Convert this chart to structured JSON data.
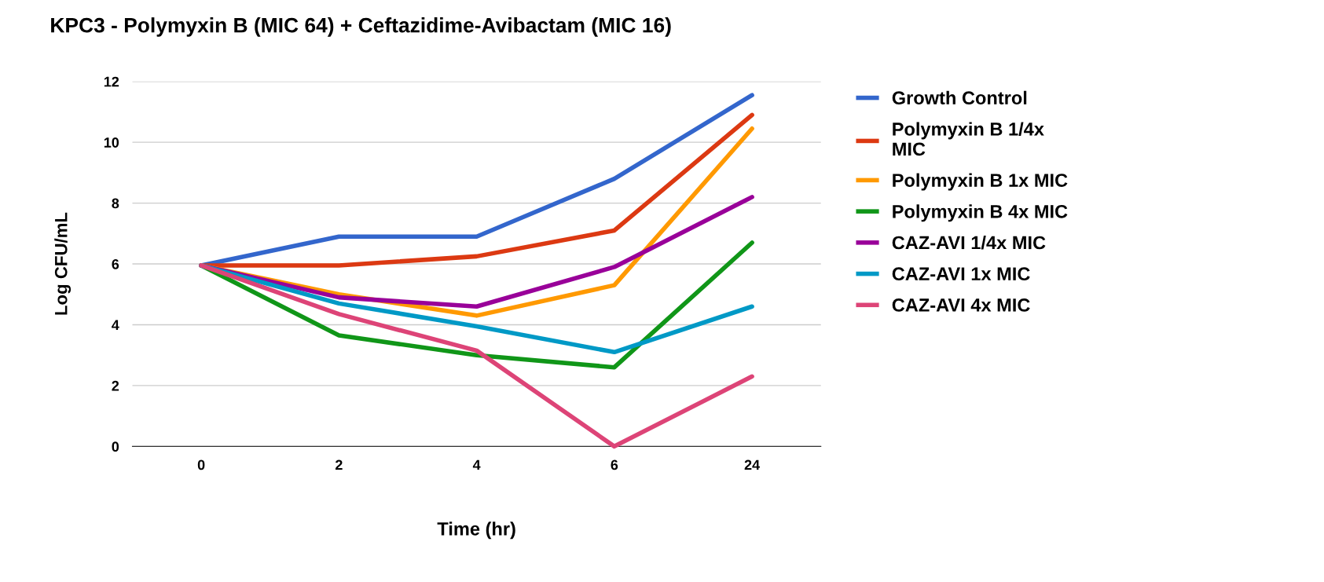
{
  "chart_data": {
    "type": "line",
    "title": "KPC3 - Polymyxin B (MIC 64) + Ceftazidime-Avibactam (MIC 16)",
    "xlabel": "Time (hr)",
    "ylabel": "Log CFU/mL",
    "categories": [
      "0",
      "2",
      "4",
      "6",
      "24"
    ],
    "series": [
      {
        "name": "Growth Control",
        "color": "#3366cc",
        "values": [
          5.95,
          6.9,
          6.9,
          8.8,
          11.55
        ]
      },
      {
        "name": "Polymyxin B 1/4x MIC",
        "color": "#dc3912",
        "values": [
          5.95,
          5.95,
          6.25,
          7.1,
          10.9
        ]
      },
      {
        "name": "Polymyxin B 1x MIC",
        "color": "#ff9900",
        "values": [
          5.95,
          5.0,
          4.3,
          5.3,
          10.45
        ]
      },
      {
        "name": "Polymyxin B 4x MIC",
        "color": "#109618",
        "values": [
          5.95,
          3.65,
          3.0,
          2.6,
          6.7
        ]
      },
      {
        "name": "CAZ-AVI 1/4x MIC",
        "color": "#990099",
        "values": [
          5.95,
          4.9,
          4.6,
          5.9,
          8.2
        ]
      },
      {
        "name": "CAZ-AVI 1x MIC",
        "color": "#0099c6",
        "values": [
          5.95,
          4.7,
          3.95,
          3.1,
          4.6
        ]
      },
      {
        "name": "CAZ-AVI 4x MIC",
        "color": "#dd4477",
        "values": [
          5.95,
          4.35,
          3.15,
          0,
          2.3
        ]
      }
    ],
    "ylim": [
      0,
      12
    ],
    "yticks": [
      0,
      2,
      4,
      6,
      8,
      10,
      12
    ],
    "grid": "y",
    "legend": "top right",
    "marker": "none",
    "line_style": "solid"
  }
}
